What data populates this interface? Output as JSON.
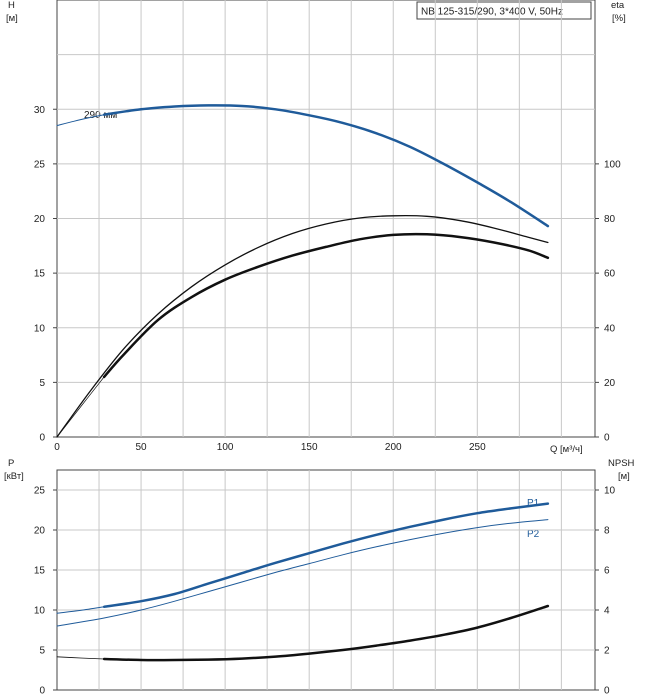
{
  "chart_data": [
    {
      "type": "line",
      "title": "NB 125-315/290, 3*400 V, 50Hz",
      "ylabel_left": "H",
      "ylabel_left_unit": "[м]",
      "ylabel_right": "eta",
      "ylabel_right_unit": "[%]",
      "xlabel": "Q [м³/ч]",
      "xlim": [
        0,
        320
      ],
      "ylim_left": [
        0,
        40
      ],
      "ylim_right": [
        0,
        160
      ],
      "xticks": [
        "0",
        "50",
        "100",
        "150",
        "200",
        "250"
      ],
      "yticks_left": [
        "0",
        "5",
        "10",
        "15",
        "20",
        "25",
        "30"
      ],
      "yticks_right": [
        "0",
        "20",
        "40",
        "60",
        "80",
        "100"
      ],
      "grid": true,
      "annotations": [
        {
          "text": "290 мм",
          "x": 18,
          "y": 29.4
        }
      ],
      "series": [
        {
          "name": "H 290 мм",
          "axis": "left",
          "color": "#1f5b9a",
          "width": 2.5,
          "x": [
            28,
            50,
            70,
            90,
            110,
            130,
            150,
            170,
            190,
            210,
            230,
            250,
            270,
            292
          ],
          "y": [
            29.5,
            30.0,
            30.25,
            30.35,
            30.3,
            30.0,
            29.45,
            28.75,
            27.8,
            26.55,
            25.0,
            23.3,
            21.5,
            19.3
          ]
        },
        {
          "name": "H extended",
          "axis": "left",
          "color": "#1f5b9a",
          "width": 1,
          "x": [
            0,
            10,
            20,
            28
          ],
          "y": [
            28.5,
            28.9,
            29.25,
            29.5
          ]
        },
        {
          "name": "eta",
          "axis": "right",
          "color": "#111111",
          "width": 1.3,
          "x": [
            0,
            20,
            40,
            60,
            80,
            100,
            120,
            140,
            160,
            180,
            200,
            220,
            240,
            260,
            280,
            292
          ],
          "y": [
            0,
            17,
            32.5,
            45,
            55,
            63,
            69.5,
            74.5,
            78,
            80.2,
            81,
            80.8,
            79.2,
            76.5,
            73.2,
            71.2
          ]
        },
        {
          "name": "eta2",
          "axis": "right",
          "color": "#111111",
          "width": 2.5,
          "x": [
            28,
            40,
            60,
            80,
            100,
            120,
            140,
            160,
            180,
            200,
            220,
            240,
            260,
            280,
            292
          ],
          "y": [
            22,
            30.4,
            42.8,
            51.2,
            57.6,
            62.4,
            66.4,
            69.6,
            72.4,
            74,
            74.2,
            73.2,
            71.2,
            68.4,
            65.6
          ]
        },
        {
          "name": "eta2 extended",
          "axis": "right",
          "color": "#111111",
          "width": 0.7,
          "x": [
            0,
            14,
            28
          ],
          "y": [
            0,
            11,
            22
          ]
        }
      ]
    },
    {
      "type": "line",
      "ylabel_left": "P",
      "ylabel_left_unit": "[кВт]",
      "ylabel_right": "NPSH",
      "ylabel_right_unit": "[м]",
      "xlim": [
        0,
        320
      ],
      "ylim_left": [
        0,
        27.5
      ],
      "ylim_right": [
        0,
        11
      ],
      "yticks_left": [
        "0",
        "5",
        "10",
        "15",
        "20",
        "25"
      ],
      "yticks_right": [
        "0",
        "2",
        "4",
        "6",
        "8",
        "10"
      ],
      "grid": true,
      "legend": [
        "P1",
        "P2"
      ],
      "series": [
        {
          "name": "P1",
          "axis": "left",
          "color": "#1f5b9a",
          "width": 2.5,
          "x": [
            28,
            50,
            70,
            90,
            110,
            130,
            150,
            170,
            190,
            210,
            230,
            250,
            270,
            292
          ],
          "y": [
            10.4,
            11.1,
            12.0,
            13.3,
            14.6,
            15.9,
            17.1,
            18.3,
            19.4,
            20.4,
            21.3,
            22.1,
            22.7,
            23.3
          ]
        },
        {
          "name": "P1 extended",
          "axis": "left",
          "color": "#1f5b9a",
          "width": 1,
          "x": [
            0,
            14,
            28
          ],
          "y": [
            9.6,
            9.95,
            10.4
          ]
        },
        {
          "name": "P2",
          "axis": "left",
          "color": "#1f5b9a",
          "width": 1,
          "x": [
            0,
            28,
            50,
            70,
            90,
            110,
            130,
            150,
            170,
            190,
            210,
            230,
            250,
            270,
            292
          ],
          "y": [
            8.0,
            9.0,
            10.0,
            11.1,
            12.3,
            13.5,
            14.7,
            15.8,
            16.9,
            17.9,
            18.8,
            19.6,
            20.3,
            20.85,
            21.3
          ]
        },
        {
          "name": "NPSH",
          "axis": "right",
          "color": "#111111",
          "width": 2.5,
          "x": [
            28,
            50,
            70,
            90,
            110,
            130,
            150,
            170,
            190,
            210,
            230,
            250,
            270,
            292
          ],
          "y": [
            1.55,
            1.5,
            1.5,
            1.52,
            1.57,
            1.67,
            1.82,
            2.0,
            2.22,
            2.47,
            2.76,
            3.12,
            3.6,
            4.2
          ]
        },
        {
          "name": "NPSH extended",
          "axis": "right",
          "color": "#111111",
          "width": 0.8,
          "x": [
            0,
            14,
            28
          ],
          "y": [
            1.66,
            1.6,
            1.55
          ]
        }
      ]
    }
  ]
}
